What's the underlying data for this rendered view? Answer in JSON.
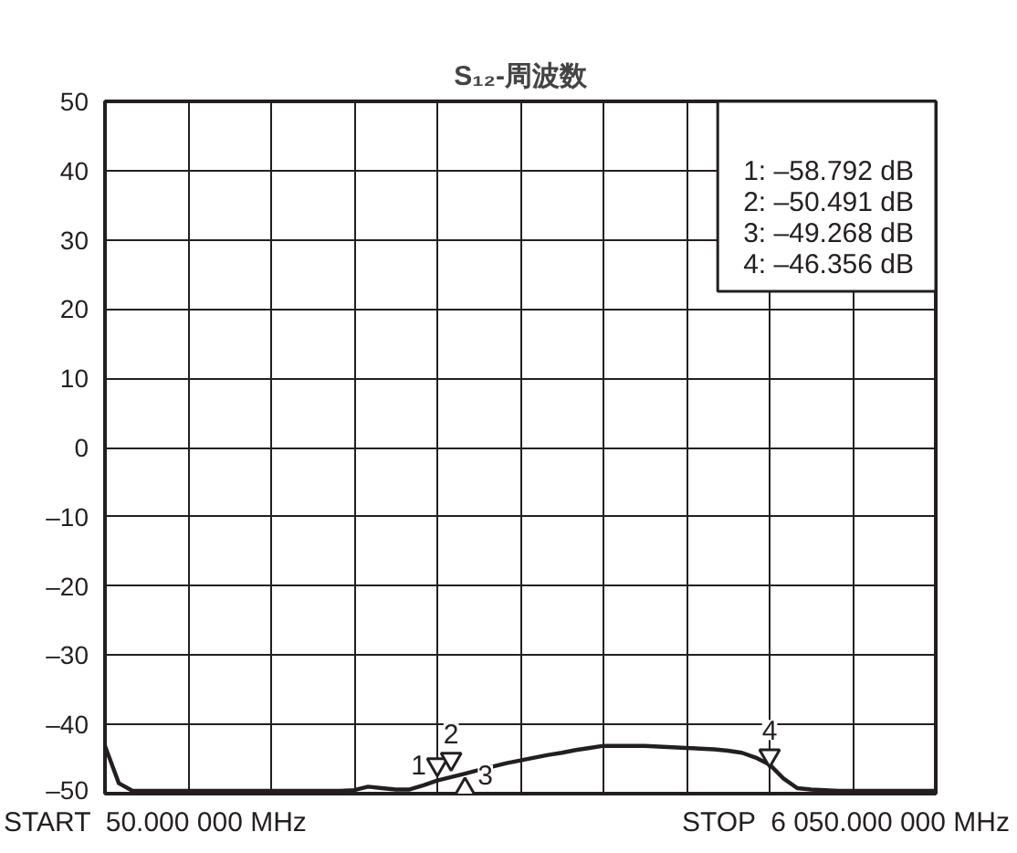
{
  "chart_data": {
    "type": "line",
    "title": "S₁₂-周波数",
    "categories": [
      null,
      null,
      null,
      null,
      null,
      null,
      null,
      null,
      null,
      null,
      null,
      null,
      null,
      null,
      null,
      null,
      null,
      null,
      null,
      null,
      null,
      null,
      null,
      null,
      null,
      null,
      null,
      null,
      null,
      null,
      null,
      null,
      null,
      null,
      null,
      null,
      null,
      null,
      null,
      null,
      null,
      null,
      null,
      null,
      null,
      null,
      null,
      null,
      null,
      null,
      null,
      null,
      null,
      null,
      null,
      null,
      null,
      null,
      null,
      null,
      null
    ],
    "series": [
      {
        "color": "#231f20",
        "values": [
          -43.1,
          -48.5,
          -49.6,
          -49.6,
          -49.6,
          -49.6,
          -49.6,
          -49.6,
          -49.6,
          -49.6,
          -49.6,
          -49.6,
          -49.6,
          -49.6,
          -49.6,
          -49.6,
          -49.6,
          -49.6,
          -49.5,
          -49.0,
          -49.2,
          -49.4,
          -49.4,
          -48.8,
          -48.1,
          -47.6,
          -47.1,
          -46.6,
          -46.1,
          -45.6,
          -45.2,
          -44.8,
          -44.4,
          -44.1,
          -43.7,
          -43.4,
          -43.1,
          -43.1,
          -43.1,
          -43.1,
          -43.2,
          -43.3,
          -43.4,
          -43.5,
          -43.6,
          -43.8,
          -44.1,
          -44.8,
          -45.8,
          -47.8,
          -49.2,
          -49.4,
          -49.5,
          -49.6,
          -49.6,
          -49.6,
          -49.6,
          -49.6,
          -49.6,
          -49.6,
          -49.6
        ]
      },
      {
        "type": "scatter",
        "name": "1",
        "marker": "triangle",
        "color": "#231f20",
        "values": [
          null,
          null,
          null,
          null,
          null,
          null,
          null,
          null,
          null,
          null,
          null,
          null,
          null,
          null,
          null,
          null,
          null,
          null,
          null,
          null,
          null,
          null,
          null,
          null,
          -45.8,
          null,
          null,
          null,
          null,
          null,
          null,
          null,
          null,
          null,
          null,
          null,
          null,
          null,
          null,
          null,
          null,
          null,
          null,
          null,
          null,
          null,
          null,
          null,
          null,
          null,
          null,
          null,
          null,
          null,
          null,
          null,
          null,
          null,
          null,
          null,
          null
        ]
      },
      {
        "type": "scatter",
        "name": "2",
        "marker": "triangle",
        "color": "#231f20",
        "values": [
          null,
          null,
          null,
          null,
          null,
          null,
          null,
          null,
          null,
          null,
          null,
          null,
          null,
          null,
          null,
          null,
          null,
          null,
          null,
          null,
          null,
          null,
          null,
          null,
          null,
          -45.0,
          null,
          null,
          null,
          null,
          null,
          null,
          null,
          null,
          null,
          null,
          null,
          null,
          null,
          null,
          null,
          null,
          null,
          null,
          null,
          null,
          null,
          null,
          null,
          null,
          null,
          null,
          null,
          null,
          null,
          null,
          null,
          null,
          null,
          null,
          null
        ]
      },
      {
        "type": "scatter",
        "name": "3",
        "marker": "triangle",
        "color": "#231f20",
        "values": [
          null,
          null,
          null,
          null,
          null,
          null,
          null,
          null,
          null,
          null,
          null,
          null,
          null,
          null,
          null,
          null,
          null,
          null,
          null,
          null,
          null,
          null,
          null,
          null,
          null,
          null,
          -49.4,
          null,
          null,
          null,
          null,
          null,
          null,
          null,
          null,
          null,
          null,
          null,
          null,
          null,
          null,
          null,
          null,
          null,
          null,
          null,
          null,
          null,
          null,
          null,
          null,
          null,
          null,
          null,
          null,
          null,
          null,
          null,
          null,
          null,
          null
        ]
      },
      {
        "type": "scatter",
        "name": "4",
        "marker": "triangle",
        "color": "#231f20",
        "values": [
          null,
          null,
          null,
          null,
          null,
          null,
          null,
          null,
          null,
          null,
          null,
          null,
          null,
          null,
          null,
          null,
          null,
          null,
          null,
          null,
          null,
          null,
          null,
          null,
          null,
          null,
          null,
          null,
          null,
          null,
          null,
          null,
          null,
          null,
          null,
          null,
          null,
          null,
          null,
          null,
          null,
          null,
          null,
          null,
          null,
          null,
          null,
          null,
          -44.5,
          null,
          null,
          null,
          null,
          null,
          null,
          null,
          null,
          null,
          null,
          null,
          null
        ]
      }
    ],
    "annotations": [
      "START  50.000 000 MHz",
      "STOP  6 050.000 000 MHz",
      "1: –58.792 dB",
      "2: –50.491 dB",
      "3: –49.268 dB",
      "4: –46.356 dB"
    ],
    "ylim": [
      -50,
      50
    ],
    "yticks": [
      {
        "value": -50,
        "label": "–50"
      },
      {
        "value": -40,
        "label": "–40"
      },
      {
        "value": -30,
        "label": "–30"
      },
      {
        "value": -20,
        "label": "–20"
      },
      {
        "value": -10,
        "label": "–10"
      },
      0,
      10,
      20,
      30,
      40,
      50
    ],
    "tick_labels": "y",
    "grid": true,
    "legend": false,
    "marker": "none",
    "line_style": "solid"
  }
}
